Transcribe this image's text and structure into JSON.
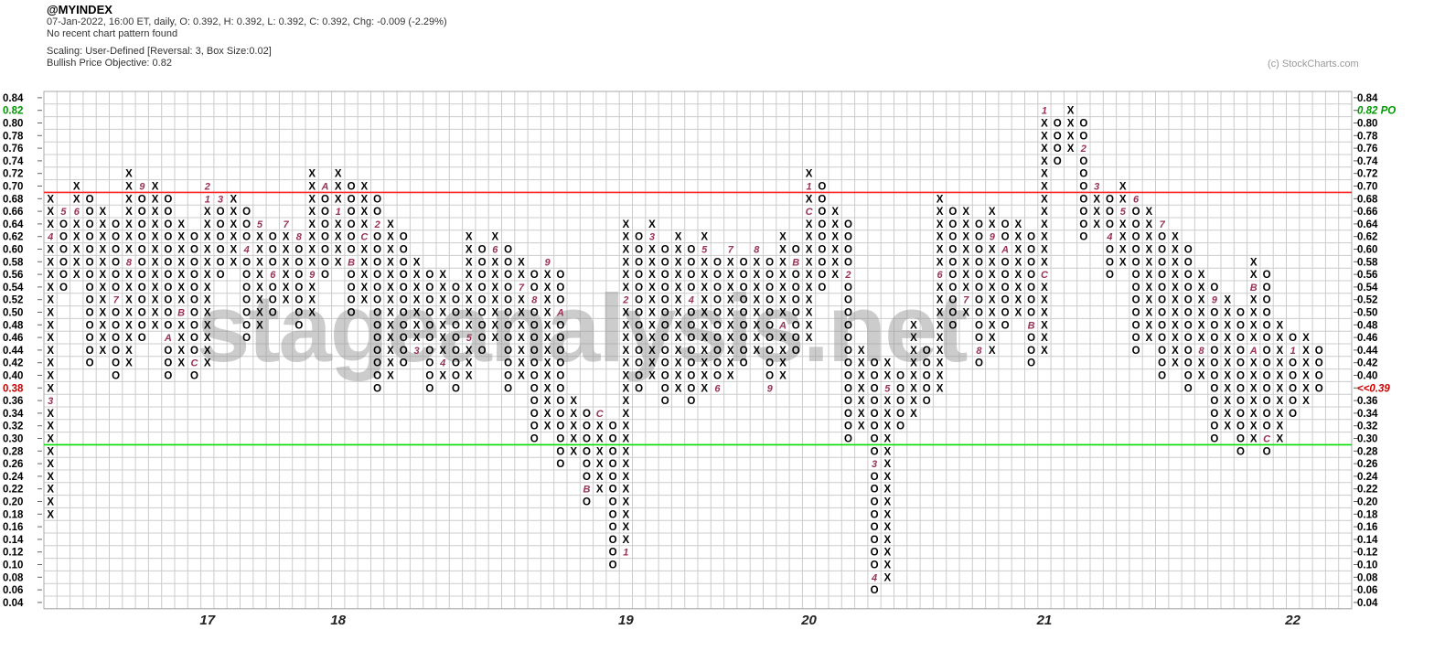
{
  "header": {
    "symbol": "@MYINDEX",
    "info_line": "07-Jan-2022, 16:00 ET, daily, O: 0.392, H: 0.392, L: 0.392, C: 0.392, Chg: -0.009 (-2.29%)",
    "pattern_line": "No recent chart pattern found",
    "scaling_line": "Scaling: User-Defined [Reversal: 3, Box Size:0.02]",
    "objective_line": "Bullish Price Objective: 0.82",
    "credit": "(c) StockCharts.com"
  },
  "watermark": "stageanalysis.net",
  "chart_data": {
    "type": "point-and-figure",
    "title": "@MYINDEX",
    "box_size": 0.02,
    "reversal": 3,
    "y_min": 0.04,
    "y_max": 0.84,
    "grid": true,
    "legend": "none",
    "colors": {
      "glyph": "#000000",
      "month": "#993355",
      "grid": "#cccccc",
      "border": "#aaaaaa",
      "red_line": "#ff2222",
      "green_line": "#00dd00",
      "green_label": "#009900",
      "red_label": "#cc0000",
      "axis_label": "#000000",
      "year_label": "#222222",
      "watermark": "#9a9a9a"
    },
    "overlay_lines": [
      {
        "value": 0.69,
        "color_key": "red_line"
      },
      {
        "value": 0.29,
        "color_key": "green_line"
      }
    ],
    "axis_overrides": {
      "left": [
        {
          "value": 0.82,
          "color_key": "green_label"
        },
        {
          "value": 0.38,
          "color_key": "red_label"
        }
      ],
      "right": [
        {
          "value": 0.82,
          "text": "0.82 PO",
          "color_key": "green_label"
        },
        {
          "value": 0.38,
          "text": "<<0.39",
          "color_key": "red_label"
        }
      ]
    },
    "x_year_labels": [
      {
        "label": "17",
        "col": 12
      },
      {
        "label": "18",
        "col": 22
      },
      {
        "label": "19",
        "col": 44
      },
      {
        "label": "20",
        "col": 58
      },
      {
        "label": "21",
        "col": 76
      },
      {
        "label": "22",
        "col": 95
      }
    ],
    "columns": [
      {
        "t": "X",
        "lo": 0.18,
        "hi": 0.68,
        "m": {
          "0.36": "3",
          "0.62": "4"
        }
      },
      {
        "t": "O",
        "lo": 0.54,
        "hi": 0.66,
        "m": {
          "0.66": "5"
        }
      },
      {
        "t": "X",
        "lo": 0.56,
        "hi": 0.7,
        "m": {
          "0.66": "6"
        }
      },
      {
        "t": "O",
        "lo": 0.42,
        "hi": 0.68
      },
      {
        "t": "X",
        "lo": 0.44,
        "hi": 0.66
      },
      {
        "t": "O",
        "lo": 0.4,
        "hi": 0.64,
        "m": {
          "0.52": "7"
        }
      },
      {
        "t": "X",
        "lo": 0.42,
        "hi": 0.72,
        "m": {
          "0.58": "8"
        }
      },
      {
        "t": "O",
        "lo": 0.46,
        "hi": 0.7,
        "m": {
          "0.70": "9"
        }
      },
      {
        "t": "X",
        "lo": 0.48,
        "hi": 0.7
      },
      {
        "t": "O",
        "lo": 0.4,
        "hi": 0.68,
        "m": {
          "0.46": "A"
        }
      },
      {
        "t": "X",
        "lo": 0.42,
        "hi": 0.64,
        "m": {
          "0.50": "B"
        }
      },
      {
        "t": "O",
        "lo": 0.4,
        "hi": 0.62,
        "m": {
          "0.42": "C"
        }
      },
      {
        "t": "X",
        "lo": 0.42,
        "hi": 0.7,
        "m": {
          "0.68": "1",
          "0.70": "2"
        }
      },
      {
        "t": "O",
        "lo": 0.56,
        "hi": 0.68,
        "m": {
          "0.68": "3"
        }
      },
      {
        "t": "X",
        "lo": 0.58,
        "hi": 0.68
      },
      {
        "t": "O",
        "lo": 0.46,
        "hi": 0.66,
        "m": {
          "0.60": "4"
        }
      },
      {
        "t": "X",
        "lo": 0.48,
        "hi": 0.64,
        "m": {
          "0.64": "5"
        }
      },
      {
        "t": "O",
        "lo": 0.5,
        "hi": 0.62,
        "m": {
          "0.56": "6"
        }
      },
      {
        "t": "X",
        "lo": 0.52,
        "hi": 0.64,
        "m": {
          "0.64": "7"
        }
      },
      {
        "t": "O",
        "lo": 0.48,
        "hi": 0.62,
        "m": {
          "0.62": "8"
        }
      },
      {
        "t": "X",
        "lo": 0.5,
        "hi": 0.72,
        "m": {
          "0.56": "9"
        }
      },
      {
        "t": "O",
        "lo": 0.56,
        "hi": 0.7,
        "m": {
          "0.70": "A"
        }
      },
      {
        "t": "X",
        "lo": 0.58,
        "hi": 0.72,
        "m": {
          "0.66": "1"
        }
      },
      {
        "t": "O",
        "lo": 0.5,
        "hi": 0.7,
        "m": {
          "0.58": "B"
        }
      },
      {
        "t": "X",
        "lo": 0.52,
        "hi": 0.7,
        "m": {
          "0.62": "C"
        }
      },
      {
        "t": "O",
        "lo": 0.38,
        "hi": 0.68,
        "m": {
          "0.64": "2"
        }
      },
      {
        "t": "X",
        "lo": 0.4,
        "hi": 0.64
      },
      {
        "t": "O",
        "lo": 0.42,
        "hi": 0.62
      },
      {
        "t": "X",
        "lo": 0.44,
        "hi": 0.58,
        "m": {
          "0.44": "3"
        }
      },
      {
        "t": "O",
        "lo": 0.38,
        "hi": 0.56
      },
      {
        "t": "X",
        "lo": 0.4,
        "hi": 0.56,
        "m": {
          "0.42": "4"
        }
      },
      {
        "t": "O",
        "lo": 0.38,
        "hi": 0.54
      },
      {
        "t": "X",
        "lo": 0.4,
        "hi": 0.62,
        "m": {
          "0.46": "5"
        }
      },
      {
        "t": "O",
        "lo": 0.44,
        "hi": 0.6
      },
      {
        "t": "X",
        "lo": 0.46,
        "hi": 0.62,
        "m": {
          "0.60": "6"
        }
      },
      {
        "t": "O",
        "lo": 0.38,
        "hi": 0.6
      },
      {
        "t": "X",
        "lo": 0.4,
        "hi": 0.58,
        "m": {
          "0.54": "7"
        }
      },
      {
        "t": "O",
        "lo": 0.3,
        "hi": 0.56,
        "m": {
          "0.52": "8"
        }
      },
      {
        "t": "X",
        "lo": 0.32,
        "hi": 0.58,
        "m": {
          "0.58": "9"
        }
      },
      {
        "t": "O",
        "lo": 0.26,
        "hi": 0.56,
        "m": {
          "0.50": "A"
        }
      },
      {
        "t": "X",
        "lo": 0.28,
        "hi": 0.36
      },
      {
        "t": "O",
        "lo": 0.2,
        "hi": 0.34,
        "m": {
          "0.22": "B"
        }
      },
      {
        "t": "X",
        "lo": 0.22,
        "hi": 0.34,
        "m": {
          "0.34": "C"
        }
      },
      {
        "t": "O",
        "lo": 0.1,
        "hi": 0.32
      },
      {
        "t": "X",
        "lo": 0.12,
        "hi": 0.64,
        "m": {
          "0.12": "1",
          "0.52": "2"
        }
      },
      {
        "t": "O",
        "lo": 0.38,
        "hi": 0.62
      },
      {
        "t": "X",
        "lo": 0.4,
        "hi": 0.64,
        "m": {
          "0.62": "3"
        }
      },
      {
        "t": "O",
        "lo": 0.36,
        "hi": 0.6
      },
      {
        "t": "X",
        "lo": 0.38,
        "hi": 0.62
      },
      {
        "t": "O",
        "lo": 0.36,
        "hi": 0.6,
        "m": {
          "0.52": "4"
        }
      },
      {
        "t": "X",
        "lo": 0.38,
        "hi": 0.62,
        "m": {
          "0.60": "5"
        }
      },
      {
        "t": "O",
        "lo": 0.38,
        "hi": 0.58,
        "m": {
          "0.38": "6"
        }
      },
      {
        "t": "X",
        "lo": 0.4,
        "hi": 0.6,
        "m": {
          "0.60": "7"
        }
      },
      {
        "t": "O",
        "lo": 0.42,
        "hi": 0.58
      },
      {
        "t": "X",
        "lo": 0.44,
        "hi": 0.6,
        "m": {
          "0.60": "8"
        }
      },
      {
        "t": "O",
        "lo": 0.38,
        "hi": 0.58,
        "m": {
          "0.38": "9"
        }
      },
      {
        "t": "X",
        "lo": 0.4,
        "hi": 0.62,
        "m": {
          "0.48": "A"
        }
      },
      {
        "t": "O",
        "lo": 0.44,
        "hi": 0.6,
        "m": {
          "0.58": "B"
        }
      },
      {
        "t": "X",
        "lo": 0.46,
        "hi": 0.72,
        "m": {
          "0.66": "C",
          "0.70": "1"
        }
      },
      {
        "t": "O",
        "lo": 0.54,
        "hi": 0.7
      },
      {
        "t": "X",
        "lo": 0.56,
        "hi": 0.66
      },
      {
        "t": "O",
        "lo": 0.3,
        "hi": 0.64,
        "m": {
          "0.56": "2"
        }
      },
      {
        "t": "X",
        "lo": 0.32,
        "hi": 0.44
      },
      {
        "t": "O",
        "lo": 0.06,
        "hi": 0.42,
        "m": {
          "0.26": "3",
          "0.08": "4"
        }
      },
      {
        "t": "X",
        "lo": 0.08,
        "hi": 0.42,
        "m": {
          "0.38": "5"
        }
      },
      {
        "t": "O",
        "lo": 0.32,
        "hi": 0.4
      },
      {
        "t": "X",
        "lo": 0.34,
        "hi": 0.48
      },
      {
        "t": "O",
        "lo": 0.36,
        "hi": 0.44
      },
      {
        "t": "X",
        "lo": 0.38,
        "hi": 0.68,
        "m": {
          "0.56": "6"
        }
      },
      {
        "t": "O",
        "lo": 0.48,
        "hi": 0.66
      },
      {
        "t": "X",
        "lo": 0.5,
        "hi": 0.66,
        "m": {
          "0.52": "7"
        }
      },
      {
        "t": "O",
        "lo": 0.42,
        "hi": 0.64,
        "m": {
          "0.44": "8"
        }
      },
      {
        "t": "X",
        "lo": 0.44,
        "hi": 0.66,
        "m": {
          "0.62": "9"
        }
      },
      {
        "t": "O",
        "lo": 0.48,
        "hi": 0.64,
        "m": {
          "0.60": "A"
        }
      },
      {
        "t": "X",
        "lo": 0.5,
        "hi": 0.64
      },
      {
        "t": "O",
        "lo": 0.42,
        "hi": 0.62,
        "m": {
          "0.48": "B"
        }
      },
      {
        "t": "X",
        "lo": 0.44,
        "hi": 0.82,
        "m": {
          "0.56": "C",
          "0.82": "1"
        }
      },
      {
        "t": "O",
        "lo": 0.74,
        "hi": 0.8
      },
      {
        "t": "X",
        "lo": 0.76,
        "hi": 0.82
      },
      {
        "t": "O",
        "lo": 0.62,
        "hi": 0.8,
        "m": {
          "0.76": "2"
        }
      },
      {
        "t": "X",
        "lo": 0.64,
        "hi": 0.7,
        "m": {
          "0.70": "3"
        }
      },
      {
        "t": "O",
        "lo": 0.56,
        "hi": 0.68,
        "m": {
          "0.62": "4"
        }
      },
      {
        "t": "X",
        "lo": 0.58,
        "hi": 0.7,
        "m": {
          "0.66": "5"
        }
      },
      {
        "t": "O",
        "lo": 0.44,
        "hi": 0.68,
        "m": {
          "0.68": "6"
        }
      },
      {
        "t": "X",
        "lo": 0.46,
        "hi": 0.66
      },
      {
        "t": "O",
        "lo": 0.4,
        "hi": 0.64,
        "m": {
          "0.64": "7"
        }
      },
      {
        "t": "X",
        "lo": 0.42,
        "hi": 0.62
      },
      {
        "t": "O",
        "lo": 0.38,
        "hi": 0.6
      },
      {
        "t": "X",
        "lo": 0.4,
        "hi": 0.56,
        "m": {
          "0.44": "8"
        }
      },
      {
        "t": "O",
        "lo": 0.3,
        "hi": 0.54,
        "m": {
          "0.52": "9"
        }
      },
      {
        "t": "X",
        "lo": 0.32,
        "hi": 0.52
      },
      {
        "t": "O",
        "lo": 0.28,
        "hi": 0.5
      },
      {
        "t": "X",
        "lo": 0.3,
        "hi": 0.58,
        "m": {
          "0.44": "A",
          "0.54": "B"
        }
      },
      {
        "t": "O",
        "lo": 0.28,
        "hi": 0.56,
        "m": {
          "0.30": "C"
        }
      },
      {
        "t": "X",
        "lo": 0.3,
        "hi": 0.48
      },
      {
        "t": "O",
        "lo": 0.34,
        "hi": 0.46,
        "m": {
          "0.44": "1"
        }
      },
      {
        "t": "X",
        "lo": 0.36,
        "hi": 0.46
      },
      {
        "t": "O",
        "lo": 0.38,
        "hi": 0.44
      }
    ]
  }
}
